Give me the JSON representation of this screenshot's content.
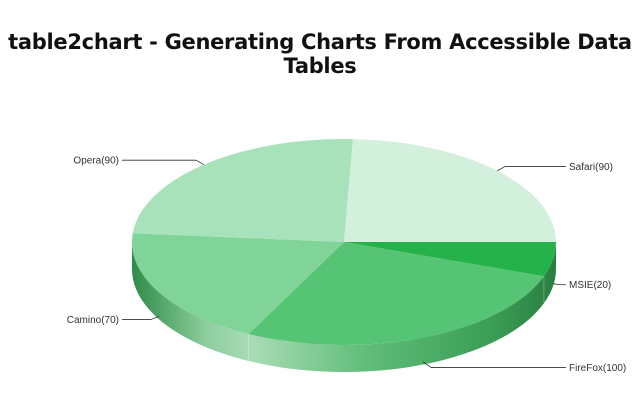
{
  "title": "table2chart - Generating Charts From Accessible Data Tables",
  "chart_data": {
    "type": "pie",
    "style": "3d",
    "title": "table2chart - Generating Charts From Accessible Data Tables",
    "legend": "none",
    "categories": [
      "MSIE",
      "FireFox",
      "Camino",
      "Opera",
      "Safari"
    ],
    "values": [
      20,
      100,
      70,
      90,
      90
    ],
    "labels": [
      "MSIE(20)",
      "FireFox(100)",
      "Camino(70)",
      "Opera(90)",
      "Safari(90)"
    ],
    "colors": [
      "#26b24a",
      "#55c474",
      "#80d498",
      "#a8e2ba",
      "#d3f0dc"
    ]
  }
}
